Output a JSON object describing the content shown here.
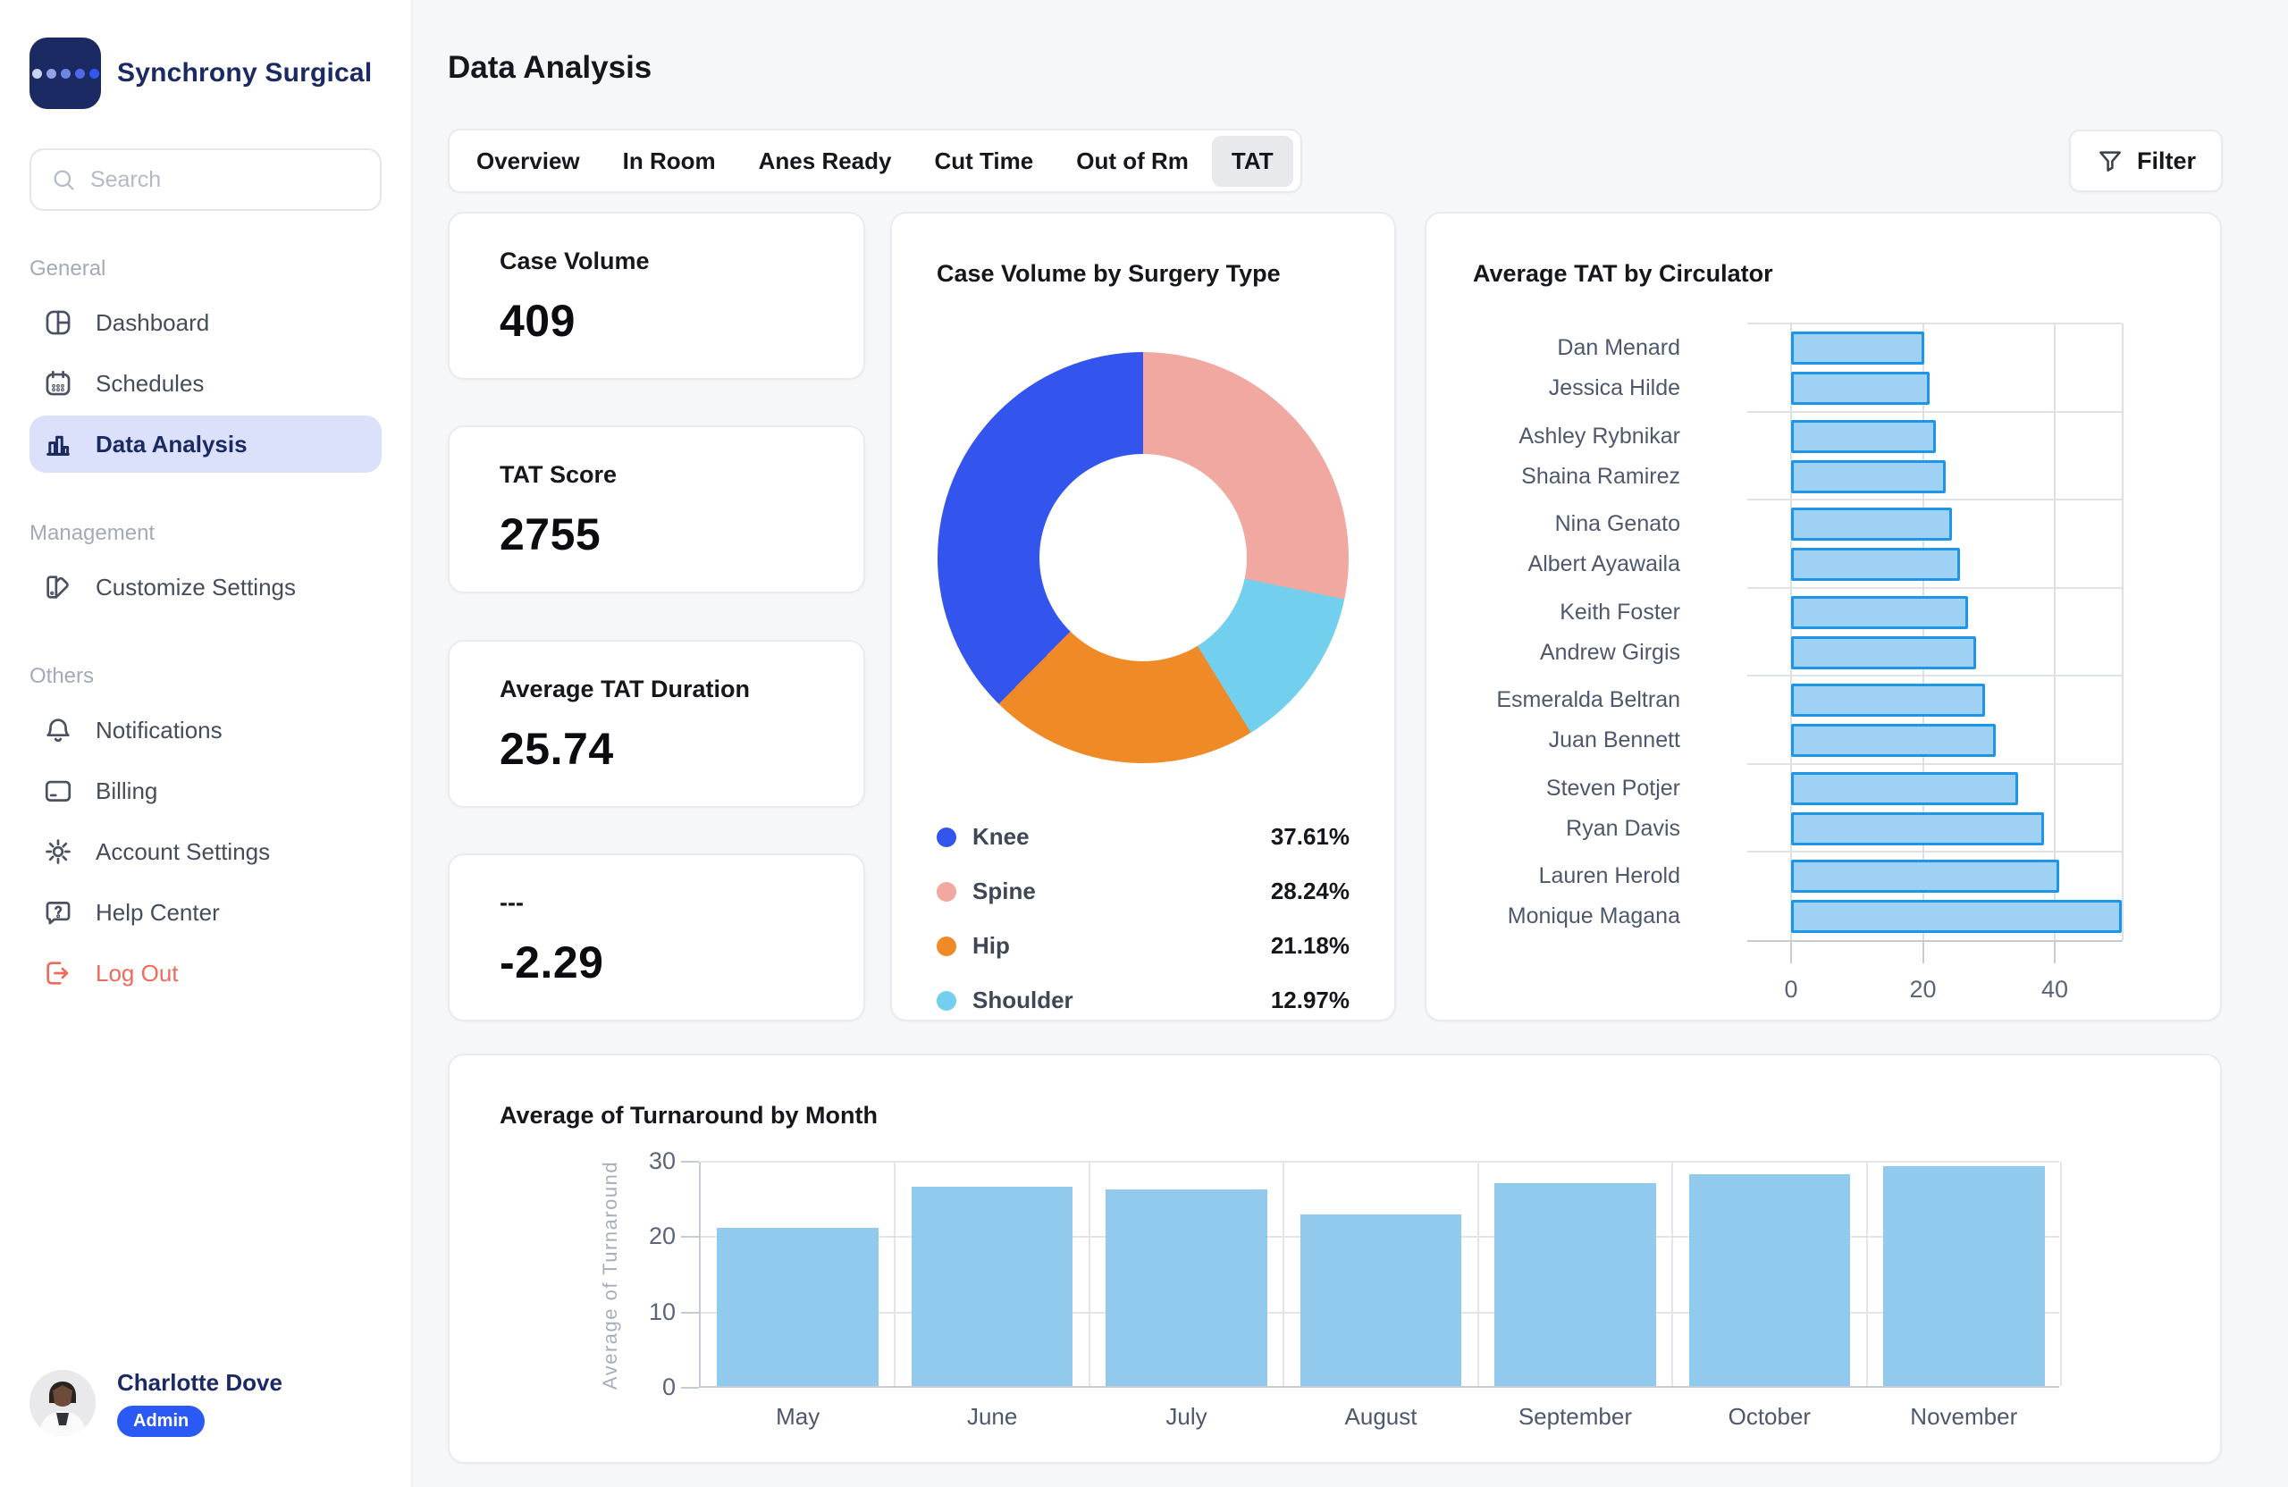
{
  "app": {
    "brand": "Synchrony Surgical"
  },
  "colors": {
    "navy": "#1C2A63",
    "active_pill": "#DBE1FA",
    "admin_badge": "#2B59F5",
    "logout_red": "#EE6B5C",
    "knee": "#3355EE",
    "spine": "#F0A8A0",
    "hip": "#F08A27",
    "shoulder": "#72CFEE",
    "tat_bar_fill": "#9FD1F4",
    "tat_bar_border": "#1E96E8",
    "month_bar_fill": "#92CAEE",
    "logo_dots": [
      "#C9D3EE",
      "#8FA3E6",
      "#6D86E2",
      "#4E6AE8",
      "#3355F0"
    ]
  },
  "sidebar": {
    "search_placeholder": "Search",
    "sections": [
      {
        "label": "General",
        "items": [
          {
            "label": "Dashboard",
            "icon": "dashboard-icon",
            "active": false
          },
          {
            "label": "Schedules",
            "icon": "calendar-icon",
            "active": false
          },
          {
            "label": "Data Analysis",
            "icon": "bar-chart-icon",
            "active": true
          }
        ]
      },
      {
        "label": "Management",
        "items": [
          {
            "label": "Customize Settings",
            "icon": "swatches-icon",
            "active": false
          }
        ]
      },
      {
        "label": "Others",
        "items": [
          {
            "label": "Notifications",
            "icon": "bell-icon",
            "active": false
          },
          {
            "label": "Billing",
            "icon": "credit-card-icon",
            "active": false
          },
          {
            "label": "Account Settings",
            "icon": "gear-icon",
            "active": false
          },
          {
            "label": "Help Center",
            "icon": "help-icon",
            "active": false
          },
          {
            "label": "Log Out",
            "icon": "logout-icon",
            "active": false,
            "danger": true
          }
        ]
      }
    ],
    "profile": {
      "name": "Charlotte Dove",
      "badge": "Admin"
    }
  },
  "header": {
    "title": "Data Analysis",
    "tabs": [
      "Overview",
      "In Room",
      "Anes Ready",
      "Cut Time",
      "Out of Rm",
      "TAT"
    ],
    "active_tab": "TAT",
    "filter_label": "Filter"
  },
  "kpis": [
    {
      "label": "Case Volume",
      "value": "409"
    },
    {
      "label": "TAT Score",
      "value": "2755"
    },
    {
      "label": "Average TAT Duration",
      "value": "25.74"
    },
    {
      "label": "---",
      "value": "-2.29"
    }
  ],
  "chart_data": [
    {
      "id": "case-volume-by-surgery-type",
      "type": "pie",
      "title": "Case Volume by Surgery Type",
      "donut_hole_ratio": 0.5,
      "segments": [
        {
          "label": "Knee",
          "pct": 37.61,
          "color": "#3355EE"
        },
        {
          "label": "Spine",
          "pct": 28.24,
          "color": "#F0A8A0"
        },
        {
          "label": "Hip",
          "pct": 21.18,
          "color": "#F08A27"
        },
        {
          "label": "Shoulder",
          "pct": 12.97,
          "color": "#72CFEE"
        }
      ],
      "draw_order_clockwise_from_top": [
        "Spine",
        "Shoulder",
        "Hip",
        "Knee"
      ],
      "legend_position": "bottom"
    },
    {
      "id": "average-tat-by-circulator",
      "type": "bar",
      "orientation": "horizontal",
      "title": "Average TAT by Circulator",
      "categories": [
        "Dan Menard",
        "Jessica Hilde",
        "Ashley Rybnikar",
        "Shaina Ramirez",
        "Nina Genato",
        "Albert Ayawaila",
        "Keith Foster",
        "Andrew Girgis",
        "Esmeralda Beltran",
        "Juan Bennett",
        "Steven Potjer",
        "Ryan Davis",
        "Lauren Herold",
        "Monique Magana"
      ],
      "values": [
        20.2,
        21,
        22,
        23.4,
        24.4,
        25.6,
        26.9,
        28,
        29.4,
        31.1,
        34.5,
        38.4,
        40.7,
        50.2
      ],
      "xticks": [
        0,
        20,
        40
      ],
      "xlim": [
        0,
        46
      ],
      "grid": true
    },
    {
      "id": "average-of-turnaround-by-month",
      "type": "bar",
      "orientation": "vertical",
      "title": "Average of Turnaround by Month",
      "ylabel": "Average of Turnaround",
      "xlabel": "",
      "categories": [
        "May",
        "June",
        "July",
        "August",
        "September",
        "October",
        "November"
      ],
      "values": [
        21,
        26.5,
        26.1,
        22.8,
        26.9,
        28.1,
        29.2
      ],
      "yticks": [
        0,
        10,
        20,
        30
      ],
      "ylim": [
        0,
        30
      ],
      "grid": true
    }
  ]
}
